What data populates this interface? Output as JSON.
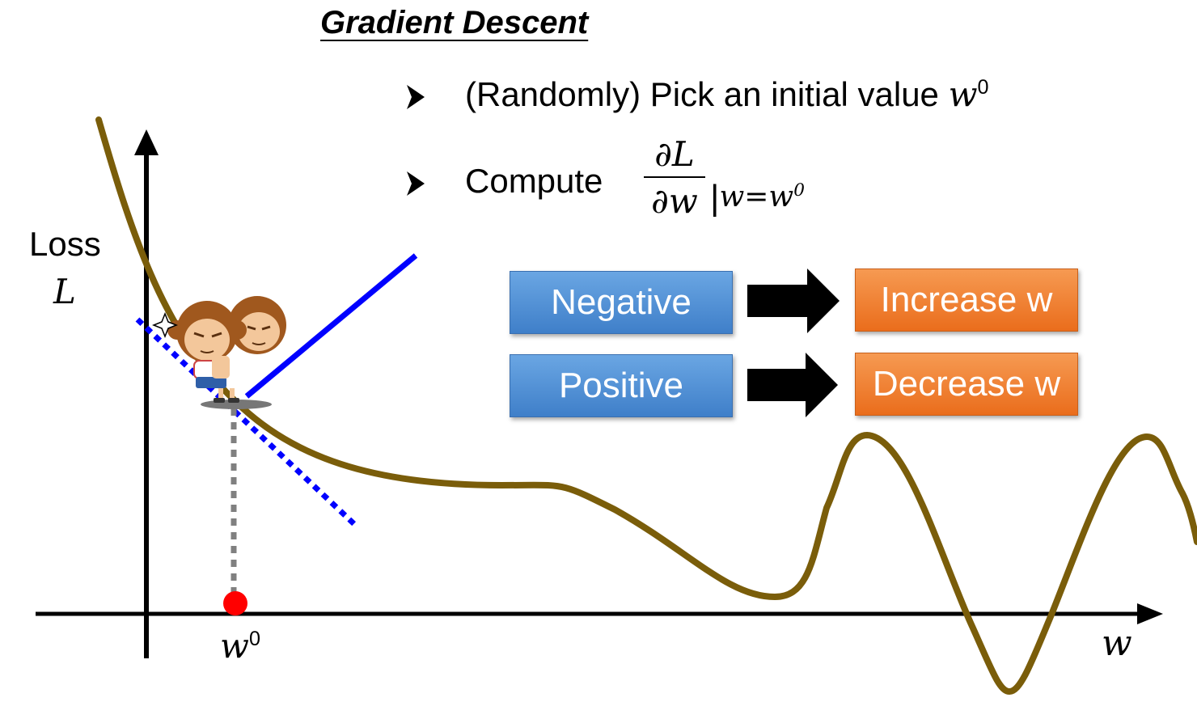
{
  "title": "Gradient Descent",
  "bullets": {
    "first": {
      "text": "(Randomly) Pick an initial value ",
      "var": "w",
      "sup": "0"
    },
    "second": {
      "text": "Compute",
      "frac_num": "∂L",
      "frac_den": "∂w",
      "eval_var": "w=w",
      "eval_sup": "0"
    }
  },
  "rules": [
    {
      "condition": "Negative",
      "action": "Increase w"
    },
    {
      "condition": "Positive",
      "action": "Decrease w"
    }
  ],
  "axes": {
    "y_label": "Loss",
    "y_symbol": "L",
    "x_symbol": "w",
    "x0_var": "w",
    "x0_sup": "0"
  },
  "colors": {
    "curve": "#7a5d0a",
    "tangent": "#0000ff",
    "marker": "#ff0000",
    "guide": "#808080",
    "box_blue": "#4a8fd6",
    "box_orange": "#ef7d2e"
  },
  "icons": [
    "arrow-bullet-icon",
    "right-arrow-icon",
    "monkey-character-icon"
  ]
}
